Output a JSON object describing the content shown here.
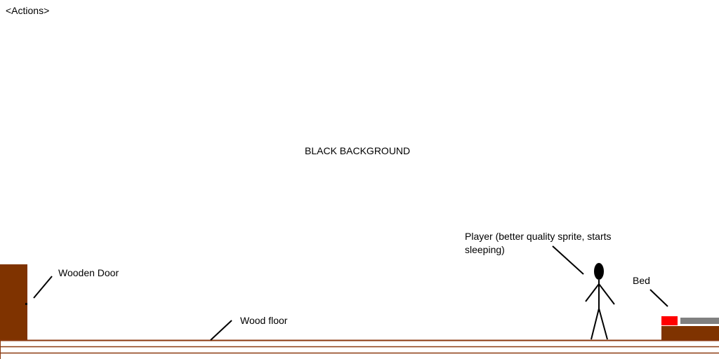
{
  "menu": {
    "actions_label": "<Actions>"
  },
  "annotations": {
    "background": "BLACK BACKGROUND",
    "door": "Wooden Door",
    "floor": "Wood floor",
    "player": "Player (better quality sprite, starts sleeping)",
    "bed": "Bed"
  },
  "colors": {
    "wood": "#7f3300",
    "floor_line": "#8b3a10",
    "pillow": "#ff0000",
    "blanket": "#808080",
    "ink": "#000000"
  },
  "icons": {
    "player": "stick-figure",
    "door": "wooden-door",
    "bed": "bed"
  }
}
